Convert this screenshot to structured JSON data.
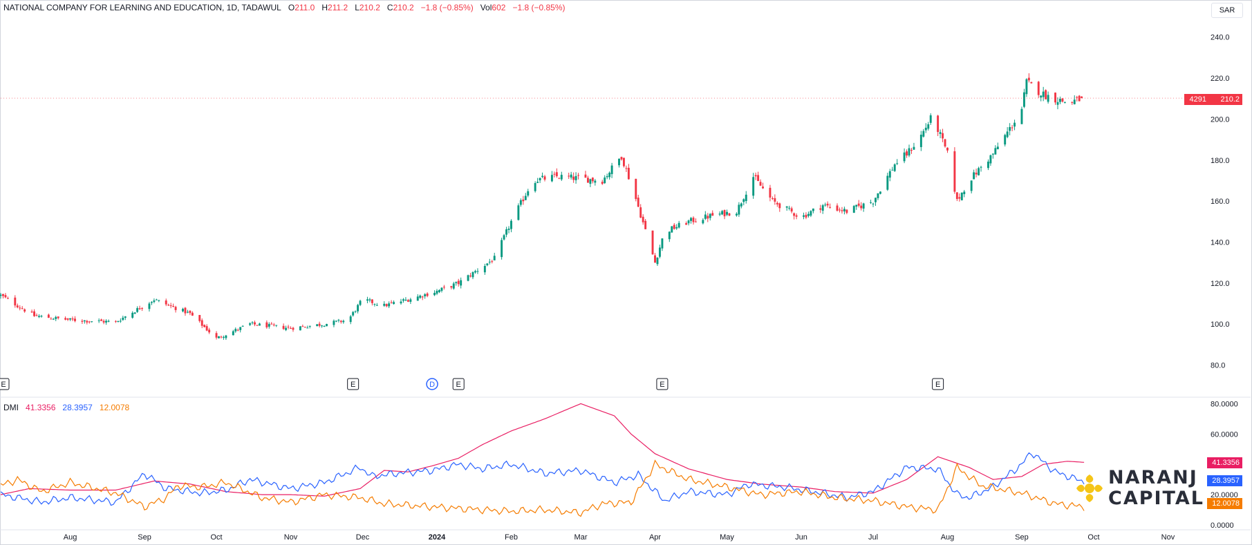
{
  "header": {
    "symbol": "NATIONAL COMPANY FOR LEARNING AND EDUCATION, 1D, TADAWUL",
    "open_label": "O",
    "open": "211.0",
    "high_label": "H",
    "high": "211.2",
    "low_label": "L",
    "low": "210.2",
    "close_label": "C",
    "close": "210.2",
    "change": "−1.8 (−0.85%)",
    "vol_label": "Vol",
    "vol": "602",
    "vol_change": "−1.8 (−0.85%)"
  },
  "currency_button": "SAR",
  "price_badge": {
    "code": "4291",
    "price": "210.2",
    "color": "#f23645"
  },
  "dmi_legend": {
    "label": "DMI",
    "adx": "41.3356",
    "plus_di": "28.3957",
    "minus_di": "12.0078"
  },
  "dmi_badges": {
    "adx": "41.3356",
    "plus_di": "28.3957",
    "minus_di": "12.0078"
  },
  "colors": {
    "up": "#089981",
    "down": "#f23645",
    "adx": "#e91e63",
    "plus_di": "#2962ff",
    "minus_di": "#f57c00"
  },
  "logo": {
    "line1": "NARANJ",
    "line2": "CAPITAL",
    "icon": "naranj-sun-logo-icon"
  },
  "events": [
    {
      "label": "E",
      "date": "2023-07-03"
    },
    {
      "label": "E",
      "date": "2023-11-27"
    },
    {
      "label": "D",
      "date": "2023-12-30"
    },
    {
      "label": "E",
      "date": "2024-01-10"
    },
    {
      "label": "E",
      "date": "2024-04-04"
    },
    {
      "label": "E",
      "date": "2024-07-28"
    }
  ],
  "chart_data": [
    {
      "type": "candlestick",
      "title": "NATIONAL COMPANY FOR LEARNING AND EDUCATION, 1D, TADAWUL",
      "y_axis_ticks": [
        "80.0",
        "100.0",
        "120.0",
        "140.0",
        "160.0",
        "180.0",
        "200.0",
        "220.0",
        "240.0"
      ],
      "ylim": [
        66,
        248
      ],
      "x_axis_ticks": [
        {
          "label": "Aug",
          "date": "2023-08-01"
        },
        {
          "label": "Sep",
          "date": "2023-09-01"
        },
        {
          "label": "Oct",
          "date": "2023-10-01"
        },
        {
          "label": "Nov",
          "date": "2023-11-01"
        },
        {
          "label": "Dec",
          "date": "2023-12-01"
        },
        {
          "label": "2024",
          "date": "2024-01-01"
        },
        {
          "label": "Feb",
          "date": "2024-02-01"
        },
        {
          "label": "Mar",
          "date": "2024-03-01"
        },
        {
          "label": "Apr",
          "date": "2024-04-01"
        },
        {
          "label": "May",
          "date": "2024-05-01"
        },
        {
          "label": "Jun",
          "date": "2024-06-01"
        },
        {
          "label": "Jul",
          "date": "2024-07-01"
        },
        {
          "label": "Aug",
          "date": "2024-08-01"
        },
        {
          "label": "Sep",
          "date": "2024-09-01"
        },
        {
          "label": "Oct",
          "date": "2024-10-01"
        },
        {
          "label": "Nov",
          "date": "2024-11-01"
        }
      ],
      "x_range": [
        "2023-07-03",
        "2024-11-15"
      ],
      "key_closes": [
        [
          "2023-07-03",
          114
        ],
        [
          "2023-07-17",
          104
        ],
        [
          "2023-08-01",
          102
        ],
        [
          "2023-08-20",
          101
        ],
        [
          "2023-09-05",
          112
        ],
        [
          "2023-09-20",
          105
        ],
        [
          "2023-10-01",
          93
        ],
        [
          "2023-10-15",
          100
        ],
        [
          "2023-11-01",
          98
        ],
        [
          "2023-11-15",
          100
        ],
        [
          "2023-11-25",
          102
        ],
        [
          "2023-12-01",
          112
        ],
        [
          "2023-12-10",
          109
        ],
        [
          "2023-12-20",
          112
        ],
        [
          "2024-01-01",
          116
        ],
        [
          "2024-01-10",
          120
        ],
        [
          "2024-01-20",
          128
        ],
        [
          "2024-01-25",
          132
        ],
        [
          "2024-02-01",
          150
        ],
        [
          "2024-02-10",
          170
        ],
        [
          "2024-02-20",
          172
        ],
        [
          "2024-03-01",
          171
        ],
        [
          "2024-03-10",
          170
        ],
        [
          "2024-03-18",
          182
        ],
        [
          "2024-03-23",
          165
        ],
        [
          "2024-04-01",
          130
        ],
        [
          "2024-04-05",
          145
        ],
        [
          "2024-04-15",
          150
        ],
        [
          "2024-04-25",
          153
        ],
        [
          "2024-05-05",
          155
        ],
        [
          "2024-05-12",
          172
        ],
        [
          "2024-05-20",
          160
        ],
        [
          "2024-06-01",
          152
        ],
        [
          "2024-06-10",
          158
        ],
        [
          "2024-06-20",
          155
        ],
        [
          "2024-07-01",
          160
        ],
        [
          "2024-07-10",
          178
        ],
        [
          "2024-07-15",
          183
        ],
        [
          "2024-07-20",
          190
        ],
        [
          "2024-07-25",
          200
        ],
        [
          "2024-07-28",
          195
        ],
        [
          "2024-08-01",
          183
        ],
        [
          "2024-08-05",
          160
        ],
        [
          "2024-08-10",
          170
        ],
        [
          "2024-08-20",
          183
        ],
        [
          "2024-08-28",
          197
        ],
        [
          "2024-09-01",
          205
        ],
        [
          "2024-09-03",
          218
        ],
        [
          "2024-09-10",
          212
        ],
        [
          "2024-09-20",
          208
        ],
        [
          "2024-09-27",
          210.2
        ]
      ],
      "last": {
        "open": 211.0,
        "high": 211.2,
        "low": 210.2,
        "close": 210.2
      }
    },
    {
      "type": "line",
      "title": "DMI",
      "y_axis_ticks": [
        "0.0000",
        "20.0000",
        "40.0000",
        "60.0000",
        "80.0000"
      ],
      "ylim": [
        0,
        82
      ],
      "series": [
        {
          "name": "ADX",
          "color": "#e91e63",
          "last": 41.3356,
          "points": [
            [
              "2023-07-03",
              20
            ],
            [
              "2023-07-15",
              24
            ],
            [
              "2023-08-01",
              23
            ],
            [
              "2023-08-20",
              23
            ],
            [
              "2023-09-05",
              29
            ],
            [
              "2023-09-20",
              27
            ],
            [
              "2023-10-05",
              22
            ],
            [
              "2023-10-20",
              20
            ],
            [
              "2023-11-01",
              20
            ],
            [
              "2023-11-15",
              19
            ],
            [
              "2023-11-30",
              24
            ],
            [
              "2023-12-10",
              36
            ],
            [
              "2023-12-20",
              35
            ],
            [
              "2023-12-30",
              39
            ],
            [
              "2024-01-10",
              44
            ],
            [
              "2024-01-20",
              53
            ],
            [
              "2024-02-01",
              62
            ],
            [
              "2024-02-15",
              70
            ],
            [
              "2024-03-01",
              80
            ],
            [
              "2024-03-15",
              72
            ],
            [
              "2024-03-22",
              60
            ],
            [
              "2024-04-01",
              47
            ],
            [
              "2024-04-15",
              37
            ],
            [
              "2024-05-01",
              30
            ],
            [
              "2024-05-15",
              27
            ],
            [
              "2024-06-01",
              25
            ],
            [
              "2024-06-15",
              22
            ],
            [
              "2024-07-01",
              21
            ],
            [
              "2024-07-15",
              30
            ],
            [
              "2024-07-28",
              45
            ],
            [
              "2024-08-10",
              38
            ],
            [
              "2024-08-20",
              30
            ],
            [
              "2024-09-01",
              32
            ],
            [
              "2024-09-10",
              40
            ],
            [
              "2024-09-20",
              42
            ],
            [
              "2024-09-27",
              41.3356
            ]
          ]
        },
        {
          "name": "+DI",
          "color": "#2962ff",
          "last": 28.3957,
          "points": [
            [
              "2023-07-03",
              20
            ],
            [
              "2023-07-20",
              15
            ],
            [
              "2023-08-01",
              18
            ],
            [
              "2023-08-20",
              15
            ],
            [
              "2023-09-01",
              34
            ],
            [
              "2023-09-10",
              24
            ],
            [
              "2023-09-25",
              21
            ],
            [
              "2023-10-05",
              23
            ],
            [
              "2023-10-15",
              30
            ],
            [
              "2023-11-01",
              24
            ],
            [
              "2023-11-15",
              28
            ],
            [
              "2023-11-30",
              38
            ],
            [
              "2023-12-05",
              32
            ],
            [
              "2023-12-15",
              34
            ],
            [
              "2023-12-30",
              36
            ],
            [
              "2024-01-10",
              40
            ],
            [
              "2024-01-20",
              37
            ],
            [
              "2024-02-01",
              40
            ],
            [
              "2024-02-15",
              34
            ],
            [
              "2024-03-01",
              36
            ],
            [
              "2024-03-15",
              28
            ],
            [
              "2024-03-25",
              33
            ],
            [
              "2024-04-05",
              16
            ],
            [
              "2024-04-15",
              22
            ],
            [
              "2024-05-01",
              20
            ],
            [
              "2024-05-10",
              27
            ],
            [
              "2024-05-25",
              25
            ],
            [
              "2024-06-10",
              21
            ],
            [
              "2024-06-20",
              18
            ],
            [
              "2024-07-01",
              22
            ],
            [
              "2024-07-15",
              38
            ],
            [
              "2024-07-28",
              37
            ],
            [
              "2024-08-05",
              20
            ],
            [
              "2024-08-10",
              18
            ],
            [
              "2024-08-20",
              25
            ],
            [
              "2024-09-01",
              40
            ],
            [
              "2024-09-05",
              48
            ],
            [
              "2024-09-15",
              35
            ],
            [
              "2024-09-27",
              28.3957
            ]
          ]
        },
        {
          "name": "-DI",
          "color": "#f57c00",
          "last": 12.0078,
          "points": [
            [
              "2023-07-03",
              26
            ],
            [
              "2023-07-10",
              30
            ],
            [
              "2023-07-20",
              22
            ],
            [
              "2023-08-01",
              28
            ],
            [
              "2023-08-20",
              21
            ],
            [
              "2023-09-01",
              12
            ],
            [
              "2023-09-10",
              18
            ],
            [
              "2023-09-15",
              26
            ],
            [
              "2023-09-25",
              25
            ],
            [
              "2023-10-05",
              28
            ],
            [
              "2023-10-20",
              18
            ],
            [
              "2023-11-01",
              15
            ],
            [
              "2023-11-15",
              20
            ],
            [
              "2023-11-30",
              18
            ],
            [
              "2023-12-10",
              14
            ],
            [
              "2023-12-30",
              12
            ],
            [
              "2024-01-20",
              10
            ],
            [
              "2024-02-01",
              9
            ],
            [
              "2024-02-15",
              10
            ],
            [
              "2024-03-01",
              8
            ],
            [
              "2024-03-10",
              14
            ],
            [
              "2024-03-22",
              15
            ],
            [
              "2024-04-01",
              40
            ],
            [
              "2024-04-15",
              30
            ],
            [
              "2024-05-01",
              25
            ],
            [
              "2024-05-15",
              20
            ],
            [
              "2024-06-01",
              22
            ],
            [
              "2024-06-15",
              18
            ],
            [
              "2024-07-01",
              16
            ],
            [
              "2024-07-15",
              12
            ],
            [
              "2024-07-28",
              10
            ],
            [
              "2024-08-05",
              38
            ],
            [
              "2024-08-15",
              26
            ],
            [
              "2024-09-01",
              21
            ],
            [
              "2024-09-15",
              14
            ],
            [
              "2024-09-27",
              12.0078
            ]
          ]
        }
      ]
    }
  ]
}
